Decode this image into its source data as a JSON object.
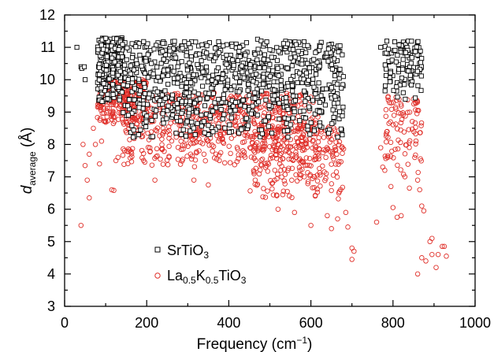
{
  "chart_data": {
    "type": "scatter",
    "xlabel": {
      "main": "Frequency (cm",
      "sup": "−1",
      "tail": ")"
    },
    "ylabel": {
      "main": "d",
      "sub": "average",
      "tail": " (Å)"
    },
    "xlim": [
      0,
      1000
    ],
    "ylim": [
      3,
      12
    ],
    "xticks": [
      "0",
      "200",
      "400",
      "600",
      "800",
      "1000"
    ],
    "yticks": [
      "3",
      "4",
      "5",
      "6",
      "7",
      "8",
      "9",
      "10",
      "11",
      "12"
    ],
    "grid": false,
    "legend_position": "bottom-left",
    "legend": [
      {
        "main": "SrTiO",
        "sub": "3",
        "tail": ""
      },
      {
        "main": "La",
        "sub": "0.5",
        "mid": "K",
        "sub2": "0.5",
        "tail": "TiO",
        "sub3": "3"
      }
    ],
    "series": [
      {
        "key": "SrTiO3",
        "marker": "square",
        "color": "#000000",
        "bands": [
          {
            "x": [
              80,
              140
            ],
            "y": [
              9.2,
              11.3
            ],
            "n": 260
          },
          {
            "x": [
              140,
              680
            ],
            "y": [
              8.2,
              11.2
            ],
            "n": 900
          },
          {
            "x": [
              780,
              870
            ],
            "y": [
              9.4,
              11.2
            ],
            "n": 110
          }
        ],
        "points": [
          [
            30,
            11.0
          ],
          [
            40,
            10.4
          ],
          [
            42,
            10.35
          ],
          [
            48,
            10.4
          ],
          [
            50,
            10.0
          ],
          [
            105,
            11.25
          ],
          [
            112,
            11.25
          ],
          [
            120,
            11.2
          ],
          [
            180,
            8.3
          ],
          [
            470,
            11.25
          ],
          [
            650,
            11.1
          ],
          [
            770,
            11.0
          ],
          [
            860,
            11.0
          ],
          [
            830,
            9.4
          ],
          [
            825,
            9.6
          ]
        ]
      },
      {
        "key": "La0.5K0.5TiO3",
        "marker": "circle",
        "color": "#e0302a",
        "bands": [
          {
            "x": [
              80,
              200
            ],
            "y": [
              8.6,
              10.0
            ],
            "n": 260
          },
          {
            "x": [
              140,
              620
            ],
            "y": [
              7.3,
              9.6
            ],
            "n": 700
          },
          {
            "x": [
              450,
              680
            ],
            "y": [
              6.2,
              8.6
            ],
            "n": 260
          },
          {
            "x": [
              780,
              870
            ],
            "y": [
              6.8,
              9.5
            ],
            "n": 90
          }
        ],
        "points": [
          [
            40,
            5.5
          ],
          [
            45,
            8.0
          ],
          [
            50,
            7.35
          ],
          [
            55,
            6.9
          ],
          [
            60,
            7.7
          ],
          [
            60,
            6.35
          ],
          [
            70,
            8.5
          ],
          [
            75,
            8.0
          ],
          [
            85,
            7.4
          ],
          [
            90,
            8.1
          ],
          [
            115,
            6.6
          ],
          [
            120,
            6.58
          ],
          [
            125,
            7.5
          ],
          [
            130,
            7.6
          ],
          [
            220,
            6.9
          ],
          [
            315,
            6.9
          ],
          [
            350,
            6.75
          ],
          [
            520,
            6.0
          ],
          [
            560,
            5.9
          ],
          [
            600,
            5.5
          ],
          [
            640,
            5.8
          ],
          [
            650,
            5.4
          ],
          [
            665,
            5.7
          ],
          [
            685,
            5.9
          ],
          [
            690,
            5.45
          ],
          [
            700,
            4.8
          ],
          [
            700,
            4.45
          ],
          [
            705,
            4.7
          ],
          [
            760,
            5.6
          ],
          [
            770,
            7.9
          ],
          [
            775,
            7.3
          ],
          [
            780,
            7.2
          ],
          [
            795,
            6.7
          ],
          [
            800,
            6.05
          ],
          [
            810,
            5.75
          ],
          [
            820,
            5.8
          ],
          [
            840,
            6.65
          ],
          [
            860,
            6.9
          ],
          [
            865,
            6.6
          ],
          [
            870,
            4.5
          ],
          [
            870,
            6.1
          ],
          [
            875,
            5.95
          ],
          [
            880,
            4.4
          ],
          [
            890,
            5.0
          ],
          [
            895,
            5.1
          ],
          [
            895,
            4.6
          ],
          [
            905,
            4.2
          ],
          [
            910,
            4.6
          ],
          [
            920,
            4.85
          ],
          [
            925,
            4.85
          ],
          [
            930,
            4.55
          ],
          [
            860,
            4.0
          ],
          [
            815,
            9.4
          ],
          [
            855,
            9.3
          ]
        ]
      }
    ]
  }
}
